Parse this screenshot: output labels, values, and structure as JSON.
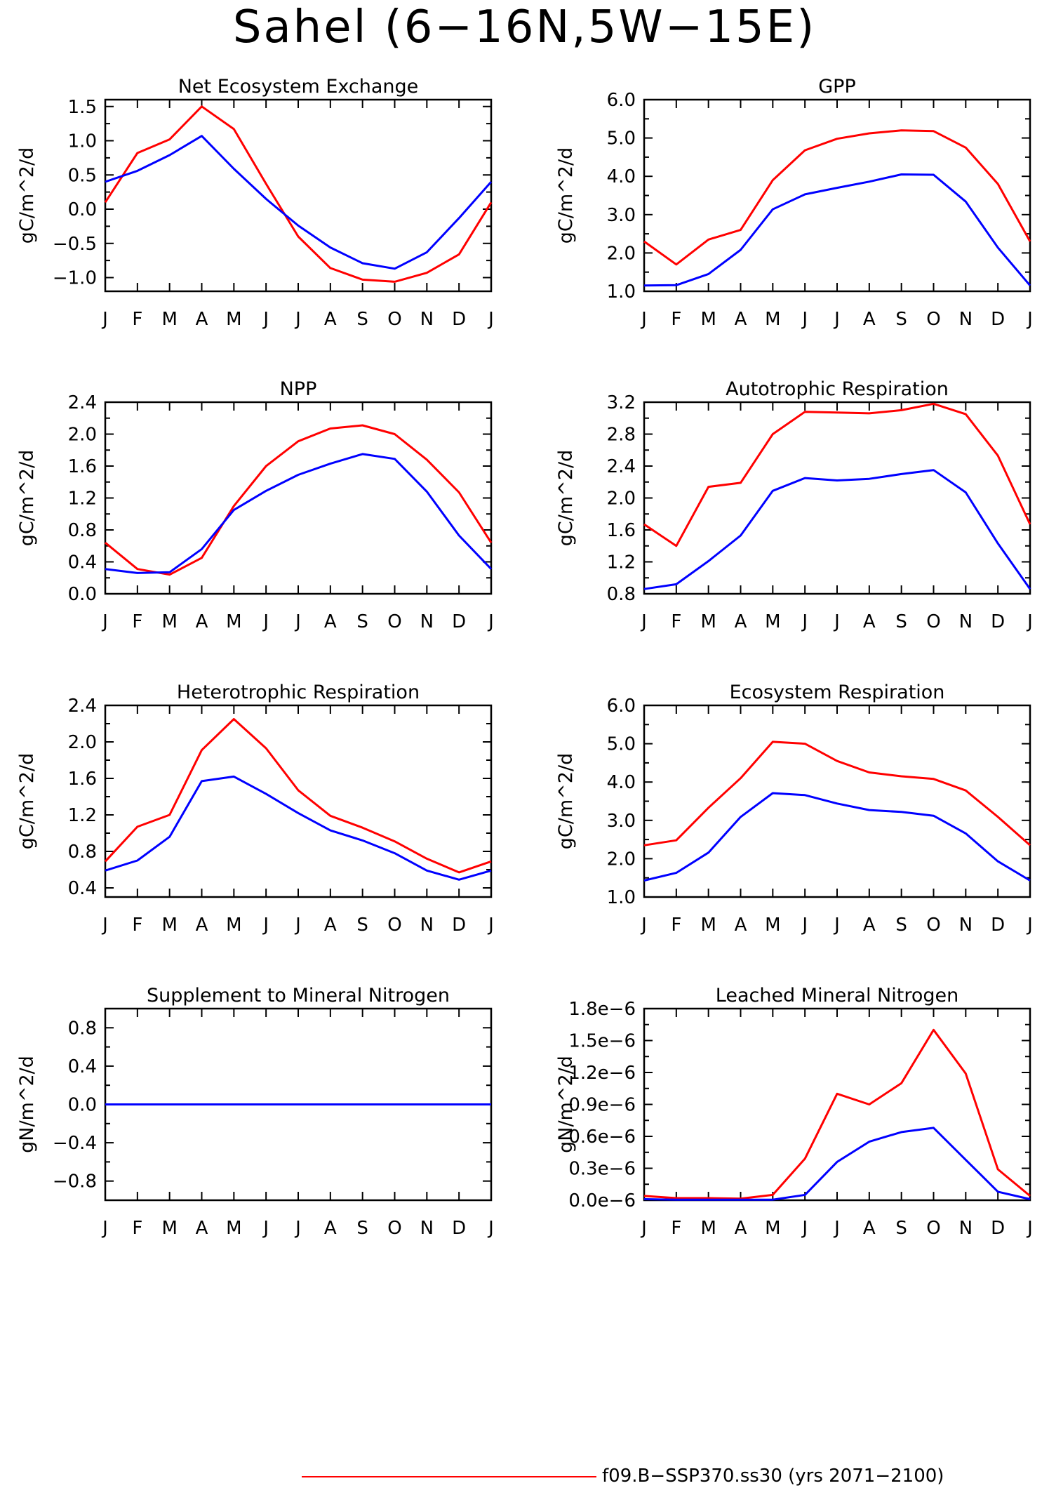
{
  "figure": {
    "title": "Sahel (6−16N,5W−15E)",
    "legend": [
      {
        "label": "f09.B−SSP370.ss30 (yrs 2071−2100)",
        "color": "#ff0000"
      }
    ]
  },
  "chart_data": [
    {
      "type": "line",
      "title": "Net Ecosystem Exchange",
      "ylabel": "gC/m^2/d",
      "categories": [
        "J",
        "F",
        "M",
        "A",
        "M",
        "J",
        "J",
        "A",
        "S",
        "O",
        "N",
        "D",
        "J"
      ],
      "ylim": [
        -1.2,
        1.6
      ],
      "yticks": [
        -1.0,
        -0.5,
        0.0,
        0.5,
        1.0,
        1.5
      ],
      "ytick_labels": [
        "−1.0",
        "−0.5",
        "0.0",
        "0.5",
        "1.0",
        "1.5"
      ],
      "series": [
        {
          "color": "#ff0000",
          "values": [
            0.1,
            0.82,
            1.02,
            1.5,
            1.17,
            0.37,
            -0.4,
            -0.86,
            -1.03,
            -1.06,
            -0.93,
            -0.66,
            0.1
          ]
        },
        {
          "color": "#0000ff",
          "values": [
            0.4,
            0.56,
            0.79,
            1.07,
            0.59,
            0.15,
            -0.24,
            -0.56,
            -0.79,
            -0.87,
            -0.63,
            -0.13,
            0.4
          ]
        }
      ]
    },
    {
      "type": "line",
      "title": "GPP",
      "ylabel": "gC/m^2/d",
      "categories": [
        "J",
        "F",
        "M",
        "A",
        "M",
        "J",
        "J",
        "A",
        "S",
        "O",
        "N",
        "D",
        "J"
      ],
      "ylim": [
        1.0,
        6.0
      ],
      "yticks": [
        1.0,
        2.0,
        3.0,
        4.0,
        5.0,
        6.0
      ],
      "ytick_labels": [
        "1.0",
        "2.0",
        "3.0",
        "4.0",
        "5.0",
        "6.0"
      ],
      "series": [
        {
          "color": "#ff0000",
          "values": [
            2.3,
            1.7,
            2.35,
            2.6,
            3.9,
            4.68,
            4.98,
            5.12,
            5.2,
            5.18,
            4.75,
            3.8,
            2.3
          ]
        },
        {
          "color": "#0000ff",
          "values": [
            1.15,
            1.16,
            1.45,
            2.08,
            3.14,
            3.53,
            3.7,
            3.86,
            4.05,
            4.04,
            3.34,
            2.14,
            1.15
          ]
        }
      ]
    },
    {
      "type": "line",
      "title": "NPP",
      "ylabel": "gC/m^2/d",
      "categories": [
        "J",
        "F",
        "M",
        "A",
        "M",
        "J",
        "J",
        "A",
        "S",
        "O",
        "N",
        "D",
        "J"
      ],
      "ylim": [
        0.0,
        2.4
      ],
      "yticks": [
        0.0,
        0.4,
        0.8,
        1.2,
        1.6,
        2.0,
        2.4
      ],
      "ytick_labels": [
        "0.0",
        "0.4",
        "0.8",
        "1.2",
        "1.6",
        "2.0",
        "2.4"
      ],
      "series": [
        {
          "color": "#ff0000",
          "values": [
            0.64,
            0.31,
            0.24,
            0.45,
            1.1,
            1.6,
            1.91,
            2.07,
            2.11,
            2.0,
            1.68,
            1.27,
            0.64
          ]
        },
        {
          "color": "#0000ff",
          "values": [
            0.31,
            0.26,
            0.27,
            0.56,
            1.05,
            1.29,
            1.49,
            1.63,
            1.75,
            1.69,
            1.28,
            0.73,
            0.31
          ]
        }
      ]
    },
    {
      "type": "line",
      "title": "Autotrophic Respiration",
      "ylabel": "gC/m^2/d",
      "categories": [
        "J",
        "F",
        "M",
        "A",
        "M",
        "J",
        "J",
        "A",
        "S",
        "O",
        "N",
        "D",
        "J"
      ],
      "ylim": [
        0.8,
        3.2
      ],
      "yticks": [
        0.8,
        1.2,
        1.6,
        2.0,
        2.4,
        2.8,
        3.2
      ],
      "ytick_labels": [
        "0.8",
        "1.2",
        "1.6",
        "2.0",
        "2.4",
        "2.8",
        "3.2"
      ],
      "series": [
        {
          "color": "#ff0000",
          "values": [
            1.67,
            1.4,
            2.14,
            2.19,
            2.8,
            3.08,
            3.07,
            3.06,
            3.1,
            3.18,
            3.05,
            2.53,
            1.67
          ]
        },
        {
          "color": "#0000ff",
          "values": [
            0.86,
            0.92,
            1.21,
            1.53,
            2.09,
            2.25,
            2.22,
            2.24,
            2.3,
            2.35,
            2.07,
            1.43,
            0.86
          ]
        }
      ]
    },
    {
      "type": "line",
      "title": "Heterotrophic Respiration",
      "ylabel": "gC/m^2/d",
      "categories": [
        "J",
        "F",
        "M",
        "A",
        "M",
        "J",
        "J",
        "A",
        "S",
        "O",
        "N",
        "D",
        "J"
      ],
      "ylim": [
        0.3,
        2.4
      ],
      "yticks": [
        0.4,
        0.8,
        1.2,
        1.6,
        2.0,
        2.4
      ],
      "ytick_labels": [
        "0.4",
        "0.8",
        "1.2",
        "1.6",
        "2.0",
        "2.4"
      ],
      "series": [
        {
          "color": "#ff0000",
          "values": [
            0.69,
            1.07,
            1.2,
            1.91,
            2.25,
            1.93,
            1.47,
            1.19,
            1.06,
            0.91,
            0.72,
            0.57,
            0.69
          ]
        },
        {
          "color": "#0000ff",
          "values": [
            0.59,
            0.7,
            0.96,
            1.57,
            1.62,
            1.43,
            1.22,
            1.03,
            0.92,
            0.78,
            0.59,
            0.49,
            0.59
          ]
        }
      ]
    },
    {
      "type": "line",
      "title": "Ecosystem Respiration",
      "ylabel": "gC/m^2/d",
      "categories": [
        "J",
        "F",
        "M",
        "A",
        "M",
        "J",
        "J",
        "A",
        "S",
        "O",
        "N",
        "D",
        "J"
      ],
      "ylim": [
        1.0,
        6.0
      ],
      "yticks": [
        1.0,
        2.0,
        3.0,
        4.0,
        5.0,
        6.0
      ],
      "ytick_labels": [
        "1.0",
        "2.0",
        "3.0",
        "4.0",
        "5.0",
        "6.0"
      ],
      "series": [
        {
          "color": "#ff0000",
          "values": [
            2.35,
            2.48,
            3.33,
            4.1,
            5.05,
            5.0,
            4.55,
            4.25,
            4.15,
            4.08,
            3.78,
            3.09,
            2.35
          ]
        },
        {
          "color": "#0000ff",
          "values": [
            1.43,
            1.63,
            2.16,
            3.09,
            3.71,
            3.66,
            3.44,
            3.27,
            3.22,
            3.12,
            2.66,
            1.93,
            1.43
          ]
        }
      ]
    },
    {
      "type": "line",
      "title": "Supplement to Mineral Nitrogen",
      "ylabel": "gN/m^2/d",
      "categories": [
        "J",
        "F",
        "M",
        "A",
        "M",
        "J",
        "J",
        "A",
        "S",
        "O",
        "N",
        "D",
        "J"
      ],
      "ylim": [
        -1.0,
        1.0
      ],
      "yticks": [
        -0.8,
        -0.4,
        0.0,
        0.4,
        0.8
      ],
      "ytick_labels": [
        "−0.8",
        "−0.4",
        "0.0",
        "0.4",
        "0.8"
      ],
      "series": [
        {
          "color": "#ff0000",
          "values": [
            0,
            0,
            0,
            0,
            0,
            0,
            0,
            0,
            0,
            0,
            0,
            0,
            0
          ]
        },
        {
          "color": "#0000ff",
          "values": [
            0,
            0,
            0,
            0,
            0,
            0,
            0,
            0,
            0,
            0,
            0,
            0,
            0
          ]
        }
      ]
    },
    {
      "type": "line",
      "title": "Leached Mineral Nitrogen",
      "ylabel": "gN/m^2/d",
      "categories": [
        "J",
        "F",
        "M",
        "A",
        "M",
        "J",
        "J",
        "A",
        "S",
        "O",
        "N",
        "D",
        "J"
      ],
      "ylim": [
        0.0,
        1.8e-06
      ],
      "yticks": [
        0.0,
        3e-07,
        6e-07,
        9e-07,
        1.2e-06,
        1.5e-06,
        1.8e-06
      ],
      "ytick_labels": [
        "0.0e−6",
        "0.3e−6",
        "0.6e−6",
        "0.9e−6",
        "1.2e−6",
        "1.5e−6",
        "1.8e−6"
      ],
      "series": [
        {
          "color": "#ff0000",
          "values": [
            4e-08,
            2e-08,
            2e-08,
            1.5e-08,
            5e-08,
            3.9e-07,
            1e-06,
            9e-07,
            1.1e-06,
            1.6e-06,
            1.19e-06,
            2.9e-07,
            4e-08
          ]
        },
        {
          "color": "#0000ff",
          "values": [
            1e-08,
            5e-09,
            5e-09,
            5e-09,
            5e-09,
            5e-08,
            3.6e-07,
            5.5e-07,
            6.4e-07,
            6.8e-07,
            3.8e-07,
            8e-08,
            1e-08
          ]
        }
      ]
    }
  ]
}
